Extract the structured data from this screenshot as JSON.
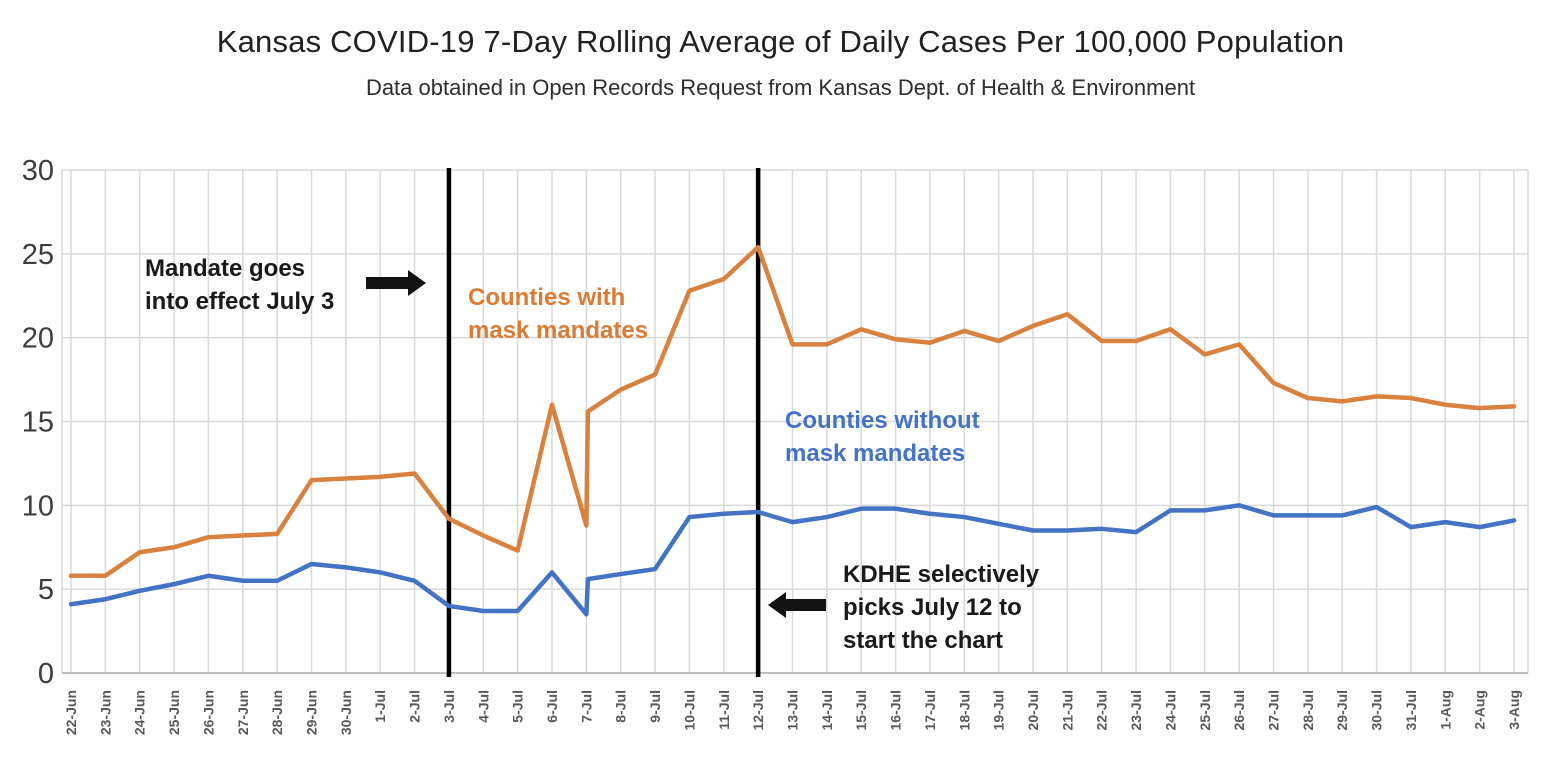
{
  "header": {
    "title": "Kansas COVID-19 7-Day Rolling Average of Daily Cases Per 100,000 Population",
    "subtitle": "Data obtained in Open Records Request from Kansas Dept. of Health & Environment"
  },
  "annotations": {
    "mandate": {
      "line1": "Mandate goes",
      "line2": "into effect July 3",
      "arrow": "right-arrow",
      "at_label": "3-Jul"
    },
    "kdhe": {
      "line1": "KDHE selectively",
      "line2": "picks July 12 to",
      "line3": "start the chart",
      "arrow": "left-arrow",
      "at_label": "12-Jul"
    },
    "series_label_with": {
      "line1": "Counties with",
      "line2": "mask mandates",
      "color": "#DB7B35"
    },
    "series_label_without": {
      "line1": "Counties without",
      "line2": "mask mandates",
      "color": "#4472C4"
    }
  },
  "colors": {
    "with_mandates": "#D9813F",
    "without_mandates": "#4472C4",
    "marker_line": "#000000",
    "gridline": "#d9d9d9",
    "axis_line": "#ababab",
    "tick_label": "#595959",
    "y_label": "#3d3d3d"
  },
  "chart_data": {
    "type": "line",
    "title": "Kansas COVID-19 7-Day Rolling Average of Daily Cases Per 100,000 Population",
    "subtitle": "Data obtained in Open Records Request from Kansas Dept. of Health & Environment",
    "xlabel": "",
    "ylabel": "",
    "ylim": [
      0,
      30
    ],
    "y_ticks": [
      0,
      5,
      10,
      15,
      20,
      25,
      30
    ],
    "grid": true,
    "legend_position": "inline-labels",
    "x_labels": [
      "22-Jun",
      "23-Jun",
      "24-Jun",
      "25-Jun",
      "26-Jun",
      "27-Jun",
      "28-Jun",
      "29-Jun",
      "30-Jun",
      "1-Jul",
      "2-Jul",
      "3-Jul",
      "4-Jul",
      "5-Jul",
      "6-Jul",
      "7-Jul",
      "8-Jul",
      "9-Jul",
      "10-Jul",
      "11-Jul",
      "12-Jul",
      "13-Jul",
      "14-Jul",
      "15-Jul",
      "16-Jul",
      "17-Jul",
      "18-Jul",
      "19-Jul",
      "20-Jul",
      "21-Jul",
      "22-Jul",
      "23-Jul",
      "24-Jul",
      "25-Jul",
      "26-Jul",
      "27-Jul",
      "28-Jul",
      "29-Jul",
      "30-Jul",
      "31-Jul",
      "1-Aug",
      "2-Aug",
      "3-Aug"
    ],
    "vertical_markers": [
      {
        "at_label": "3-Jul",
        "meaning": "Mandate goes into effect July 3"
      },
      {
        "at_label": "12-Jul",
        "meaning": "KDHE selectively picks July 12 to start the chart"
      }
    ],
    "series": [
      {
        "name": "Counties with mask mandates",
        "color": "#D9813F",
        "values": [
          5.8,
          5.8,
          7.2,
          7.5,
          8.1,
          8.2,
          8.3,
          11.5,
          11.6,
          11.7,
          11.9,
          9.2,
          8.2,
          7.3,
          16.0,
          8.8,
          16.9,
          17.8,
          22.8,
          23.5,
          25.4,
          19.6,
          19.6,
          20.5,
          19.9,
          19.7,
          20.4,
          19.8,
          20.7,
          21.4,
          19.8,
          19.8,
          20.5,
          19.0,
          19.6,
          17.3,
          16.4,
          16.2,
          16.5,
          16.4,
          16.0,
          15.8,
          15.9
        ],
        "jump": {
          "at_label": "7-Jul",
          "to": 15.6
        }
      },
      {
        "name": "Counties without mask mandates",
        "color": "#4472C4",
        "values": [
          4.1,
          4.4,
          4.9,
          5.3,
          5.8,
          5.5,
          5.5,
          6.5,
          6.3,
          6.0,
          5.5,
          4.0,
          3.7,
          3.7,
          6.0,
          3.5,
          5.9,
          6.2,
          9.3,
          9.5,
          9.6,
          9.0,
          9.3,
          9.8,
          9.8,
          9.5,
          9.3,
          8.9,
          8.5,
          8.5,
          8.6,
          8.4,
          9.7,
          9.7,
          10.0,
          9.4,
          9.4,
          9.4,
          9.9,
          8.7,
          9.0,
          8.7,
          9.1
        ],
        "jump": {
          "at_label": "7-Jul",
          "to": 5.6
        }
      }
    ]
  }
}
